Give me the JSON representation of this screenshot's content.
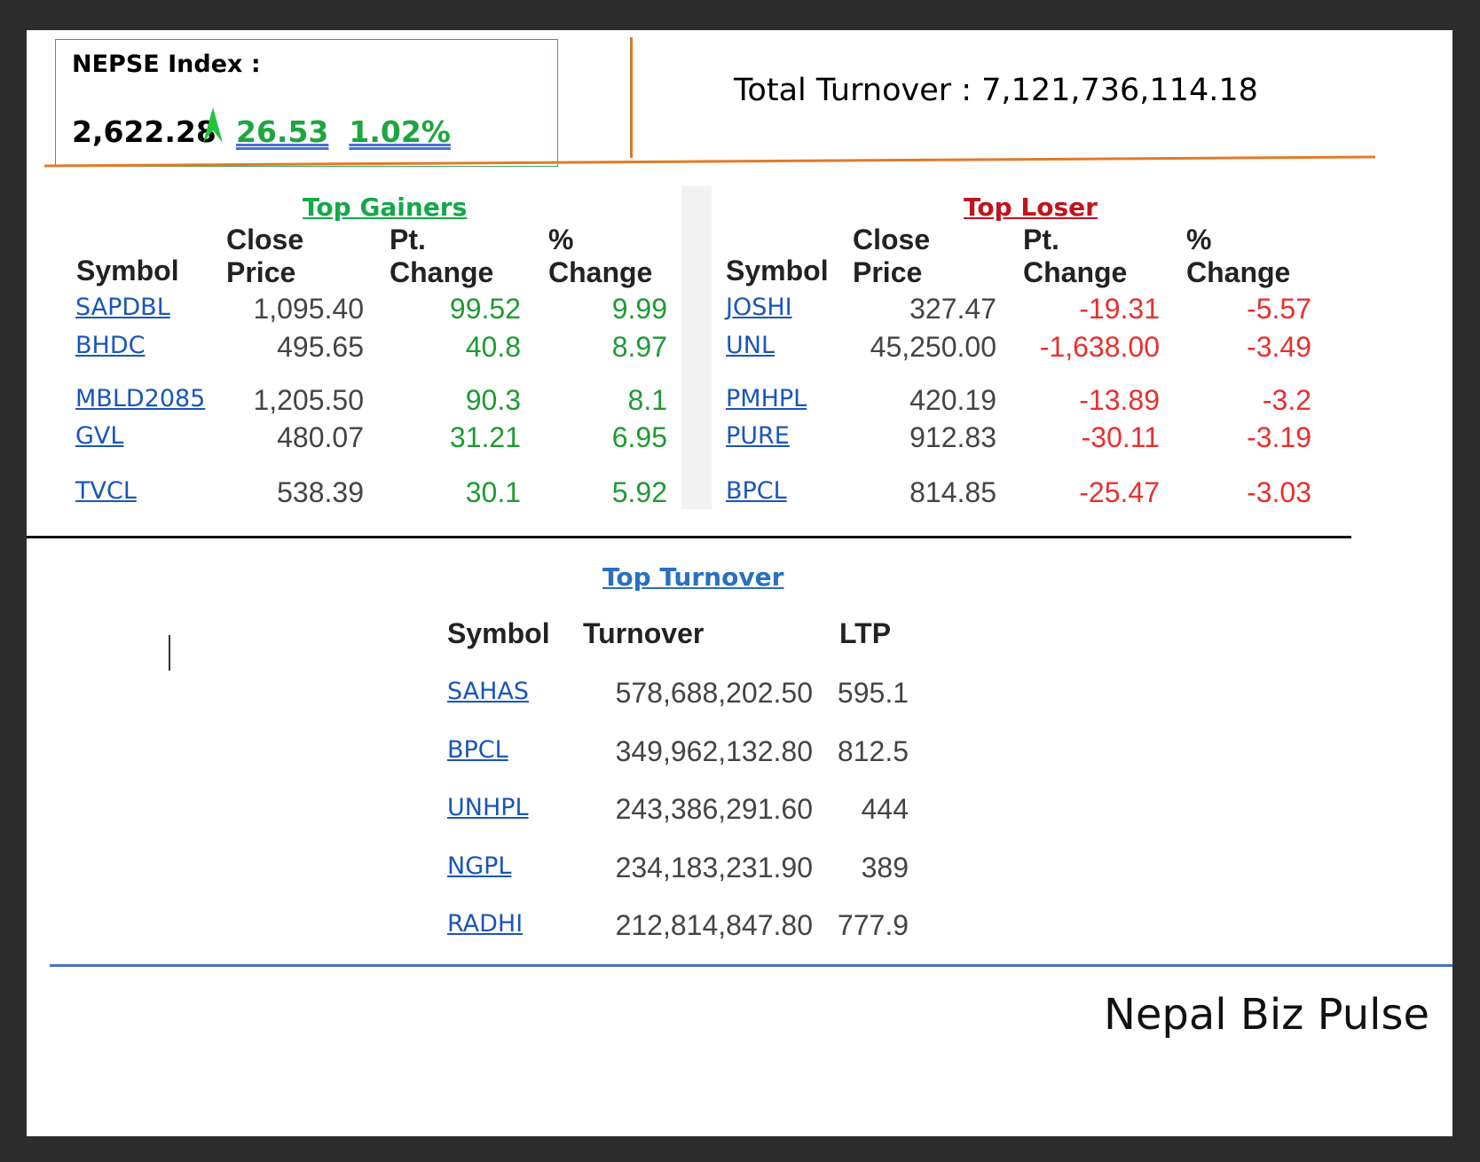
{
  "index": {
    "label": "NEPSE Index :",
    "value": "2,622.28",
    "direction": "up",
    "change": "26.53",
    "percent": "1.02%"
  },
  "total_turnover": "Total Turnover : 7,121,736,114.18",
  "gainers": {
    "title": "Top Gainers",
    "headers": {
      "symbol": "Symbol",
      "close_1": "Close",
      "close_2": "Price",
      "pt_1": "Pt.",
      "pt_2": "Change",
      "pct_1": "%",
      "pct_2": "Change"
    },
    "rows": [
      {
        "symbol": "SAPDBL",
        "close": "1,095.40",
        "pt": "99.52",
        "pct": "9.99"
      },
      {
        "symbol": "BHDC",
        "close": "495.65",
        "pt": "40.8",
        "pct": "8.97"
      },
      {
        "symbol": "MBLD2085",
        "close": "1,205.50",
        "pt": "90.3",
        "pct": "8.1"
      },
      {
        "symbol": "GVL",
        "close": "480.07",
        "pt": "31.21",
        "pct": "6.95"
      },
      {
        "symbol": "TVCL",
        "close": "538.39",
        "pt": "30.1",
        "pct": "5.92"
      }
    ]
  },
  "losers": {
    "title": "Top Loser",
    "headers": {
      "symbol": "Symbol",
      "close_1": "Close",
      "close_2": "Price",
      "pt_1": "Pt.",
      "pt_2": "Change",
      "pct_1": "%",
      "pct_2": "Change"
    },
    "rows": [
      {
        "symbol": "JOSHI",
        "close": "327.47",
        "pt": "-19.31",
        "pct": "-5.57"
      },
      {
        "symbol": "UNL",
        "close": "45,250.00",
        "pt": "-1,638.00",
        "pct": "-3.49"
      },
      {
        "symbol": "PMHPL",
        "close": "420.19",
        "pt": "-13.89",
        "pct": "-3.2"
      },
      {
        "symbol": "PURE",
        "close": "912.83",
        "pt": "-30.11",
        "pct": "-3.19"
      },
      {
        "symbol": "BPCL",
        "close": "814.85",
        "pt": "-25.47",
        "pct": "-3.03"
      }
    ]
  },
  "turnover": {
    "title": "Top Turnover",
    "headers": {
      "symbol": "Symbol",
      "turnover": "Turnover",
      "ltp": "LTP"
    },
    "rows": [
      {
        "symbol": "SAHAS",
        "turnover": "578,688,202.50",
        "ltp": "595.1"
      },
      {
        "symbol": "BPCL",
        "turnover": "349,962,132.80",
        "ltp": "812.5"
      },
      {
        "symbol": "UNHPL",
        "turnover": "243,386,291.60",
        "ltp": "444"
      },
      {
        "symbol": "NGPL",
        "turnover": "234,183,231.90",
        "ltp": "389"
      },
      {
        "symbol": "RADHI",
        "turnover": "212,814,847.80",
        "ltp": "777.9"
      }
    ]
  },
  "brand": "Nepal Biz Pulse",
  "colors": {
    "gain": "#1f9a33",
    "loss": "#e8302e",
    "link": "#1a56b8",
    "gainers_title": "#14a84a",
    "losers_title": "#c0141e",
    "turnover_title": "#2a6fc0",
    "divider_orange": "#e07a2a",
    "divider_blue": "#4a72b8"
  }
}
